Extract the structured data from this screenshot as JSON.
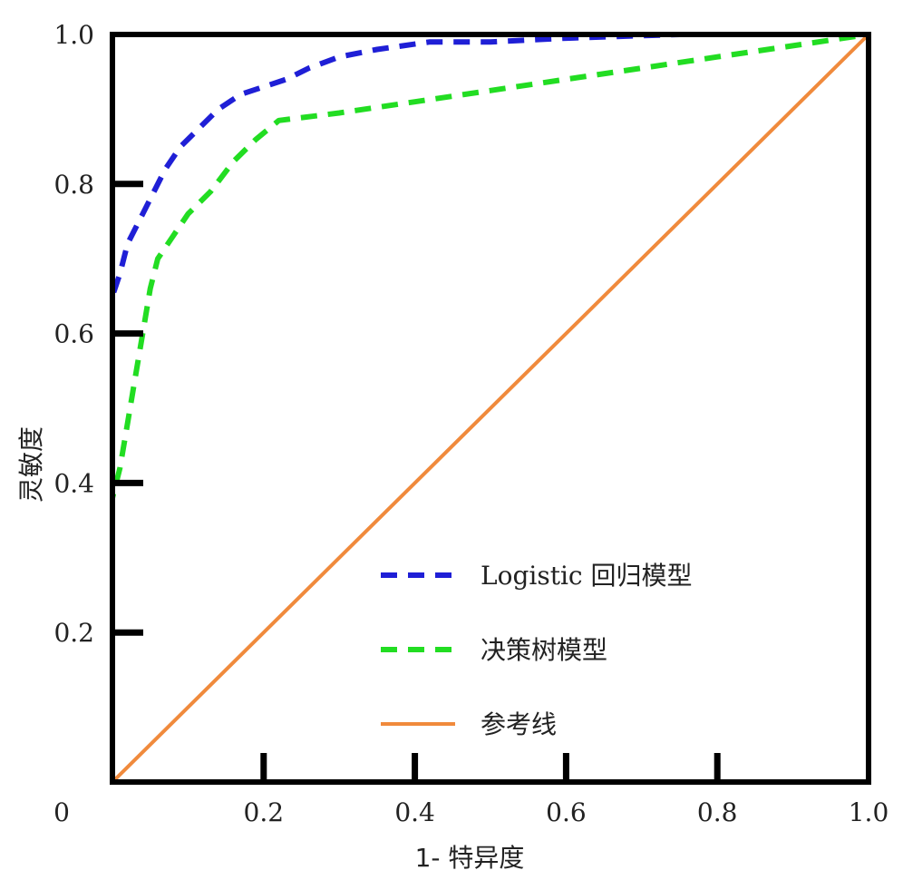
{
  "chart_data": {
    "type": "line",
    "title": "",
    "xlabel": "1- 特异度",
    "ylabel": "灵敏度",
    "xlim": [
      0,
      1
    ],
    "ylim": [
      0,
      1
    ],
    "origin_label": "0",
    "x_ticks": [
      "0.2",
      "0.4",
      "0.6",
      "0.8",
      "1.0"
    ],
    "x_tick_values": [
      0.2,
      0.4,
      0.6,
      0.8,
      1.0
    ],
    "y_ticks": [
      "0.2",
      "0.4",
      "0.6",
      "0.8",
      "1.0"
    ],
    "y_tick_values": [
      0.2,
      0.4,
      0.6,
      0.8,
      1.0
    ],
    "grid": false,
    "legend_position": "lower-right",
    "series": [
      {
        "name": "Logistic 回归模型",
        "color": "#1f1fd6",
        "style": "dashed",
        "points": [
          [
            0,
            0
          ],
          [
            0,
            0.65
          ],
          [
            0.01,
            0.68
          ],
          [
            0.02,
            0.72
          ],
          [
            0.04,
            0.76
          ],
          [
            0.05,
            0.78
          ],
          [
            0.07,
            0.82
          ],
          [
            0.09,
            0.85
          ],
          [
            0.12,
            0.88
          ],
          [
            0.14,
            0.9
          ],
          [
            0.17,
            0.92
          ],
          [
            0.2,
            0.93
          ],
          [
            0.23,
            0.94
          ],
          [
            0.26,
            0.955
          ],
          [
            0.3,
            0.97
          ],
          [
            0.35,
            0.98
          ],
          [
            0.42,
            0.99
          ],
          [
            0.5,
            0.99
          ],
          [
            0.6,
            0.995
          ],
          [
            0.75,
            1.0
          ],
          [
            1.0,
            1.0
          ]
        ]
      },
      {
        "name": "决策树模型",
        "color": "#22dd22",
        "style": "dashed",
        "points": [
          [
            0,
            0
          ],
          [
            0,
            0.38
          ],
          [
            0.01,
            0.42
          ],
          [
            0.02,
            0.48
          ],
          [
            0.03,
            0.54
          ],
          [
            0.04,
            0.6
          ],
          [
            0.05,
            0.66
          ],
          [
            0.06,
            0.7
          ],
          [
            0.08,
            0.73
          ],
          [
            0.1,
            0.76
          ],
          [
            0.13,
            0.79
          ],
          [
            0.16,
            0.83
          ],
          [
            0.19,
            0.86
          ],
          [
            0.22,
            0.885
          ],
          [
            0.3,
            0.895
          ],
          [
            0.4,
            0.91
          ],
          [
            0.5,
            0.925
          ],
          [
            0.6,
            0.94
          ],
          [
            0.7,
            0.955
          ],
          [
            0.8,
            0.97
          ],
          [
            0.9,
            0.985
          ],
          [
            1.0,
            1.0
          ]
        ]
      },
      {
        "name": "参考线",
        "color": "#f08a3c",
        "style": "solid",
        "points": [
          [
            0,
            0
          ],
          [
            1,
            1
          ]
        ]
      }
    ]
  }
}
